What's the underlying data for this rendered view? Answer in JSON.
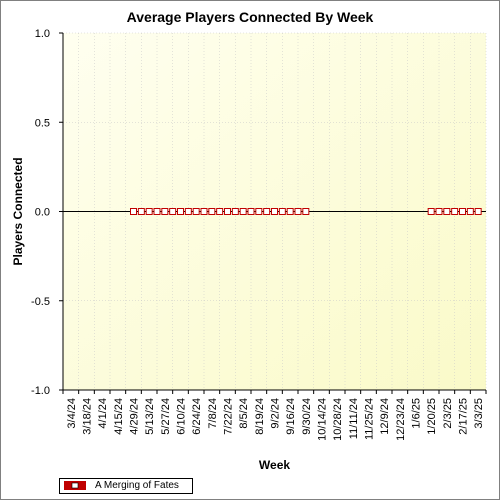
{
  "chart_data": {
    "type": "line",
    "title": "Average Players Connected By Week",
    "xlabel": "Week",
    "ylabel": "Players Connected",
    "ylim": [
      -1.0,
      1.0
    ],
    "y_ticks": [
      "1.0",
      "0.5",
      "0.0",
      "-0.5",
      "-1.0"
    ],
    "y_tick_values": [
      1.0,
      0.5,
      0.0,
      -0.5,
      -1.0
    ],
    "x_tick_labels": [
      "3/4/24",
      "3/18/24",
      "4/1/24",
      "4/15/24",
      "4/29/24",
      "5/13/24",
      "5/27/24",
      "6/10/24",
      "6/24/24",
      "7/8/24",
      "7/22/24",
      "8/5/24",
      "8/19/24",
      "9/2/24",
      "9/16/24",
      "9/30/24",
      "10/14/24",
      "10/28/24",
      "11/11/24",
      "11/25/24",
      "12/9/24",
      "12/23/24",
      "1/6/25",
      "1/20/25",
      "2/3/25",
      "2/17/25",
      "3/3/25"
    ],
    "grid": true,
    "legend_position": "bottom-left",
    "background_colors": [
      "#fffff0",
      "#fafac8"
    ],
    "series": [
      {
        "name": "A Merging of Fates",
        "color": "#c00000",
        "marker_fill": "#ffffff",
        "points": [
          {
            "x": "4/29/24",
            "y": 0.0
          },
          {
            "x": "5/6/24",
            "y": 0.0
          },
          {
            "x": "5/13/24",
            "y": 0.0
          },
          {
            "x": "5/20/24",
            "y": 0.0
          },
          {
            "x": "5/27/24",
            "y": 0.0
          },
          {
            "x": "6/3/24",
            "y": 0.0
          },
          {
            "x": "6/10/24",
            "y": 0.0
          },
          {
            "x": "6/17/24",
            "y": 0.0
          },
          {
            "x": "6/24/24",
            "y": 0.0
          },
          {
            "x": "7/1/24",
            "y": 0.0
          },
          {
            "x": "7/8/24",
            "y": 0.0
          },
          {
            "x": "7/15/24",
            "y": 0.0
          },
          {
            "x": "7/22/24",
            "y": 0.0
          },
          {
            "x": "7/29/24",
            "y": 0.0
          },
          {
            "x": "8/5/24",
            "y": 0.0
          },
          {
            "x": "8/12/24",
            "y": 0.0
          },
          {
            "x": "8/19/24",
            "y": 0.0
          },
          {
            "x": "8/26/24",
            "y": 0.0
          },
          {
            "x": "9/2/24",
            "y": 0.0
          },
          {
            "x": "9/9/24",
            "y": 0.0
          },
          {
            "x": "9/16/24",
            "y": 0.0
          },
          {
            "x": "9/23/24",
            "y": 0.0
          },
          {
            "x": "9/30/24",
            "y": 0.0
          },
          {
            "x": "1/20/25",
            "y": 0.0
          },
          {
            "x": "1/27/25",
            "y": 0.0
          },
          {
            "x": "2/3/25",
            "y": 0.0
          },
          {
            "x": "2/10/25",
            "y": 0.0
          },
          {
            "x": "2/17/25",
            "y": 0.0
          },
          {
            "x": "2/24/25",
            "y": 0.0
          },
          {
            "x": "3/3/25",
            "y": 0.0
          }
        ]
      }
    ]
  }
}
